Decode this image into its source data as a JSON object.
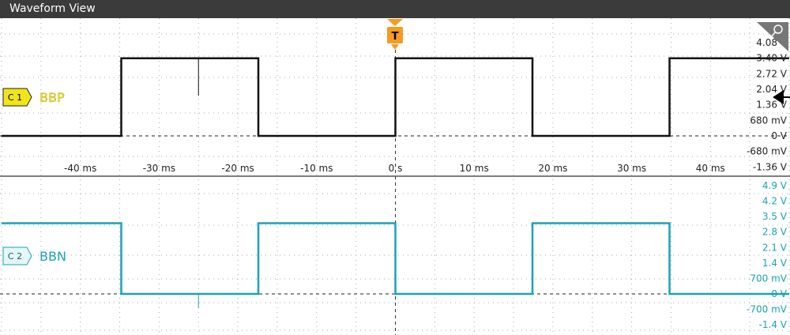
{
  "window": {
    "title": "Waveform View"
  },
  "trigger": {
    "badge": "T",
    "color": "#f59b22"
  },
  "channels": [
    {
      "id": "C1",
      "badge": "C 1",
      "name": "BBP",
      "color": "#f0e41b",
      "trace_color": "#111111"
    },
    {
      "id": "C2",
      "badge": "C 2",
      "name": "BBN",
      "color": "#e3f7f7",
      "trace_color": "#1aa3b3"
    }
  ],
  "chart_data": {
    "type": "line",
    "x_unit": "ms",
    "xlim": [
      -50,
      50
    ],
    "x_ticks": [
      -40,
      -30,
      -20,
      -10,
      0,
      10,
      20,
      30,
      40
    ],
    "x_tick_labels": [
      "-40 ms",
      "-30 ms",
      "-20 ms",
      "-10 ms",
      "0 s",
      "10 ms",
      "20 ms",
      "30 ms",
      "40 ms"
    ],
    "grid": true,
    "panes": [
      {
        "channel": "BBP",
        "ylim": [
          -1.36,
          4.08
        ],
        "y_tick_labels": [
          "4.08 V",
          "3.40 V",
          "2.72 V",
          "2.04 V",
          "1.36 V",
          "680 mV",
          "0 V",
          "-680 mV",
          "-1.36 V"
        ],
        "y_ticks": [
          4.08,
          3.4,
          2.72,
          2.04,
          1.36,
          0.68,
          0,
          -0.68,
          -1.36
        ],
        "x": [
          -50,
          -34.8,
          -34.8,
          -17.4,
          -17.4,
          0,
          0,
          17.4,
          17.4,
          34.8,
          34.8,
          50
        ],
        "y": [
          0,
          0,
          3.4,
          3.4,
          0,
          0,
          3.4,
          3.4,
          0,
          0,
          3.4,
          3.4
        ]
      },
      {
        "channel": "BBN",
        "ylim": [
          -1.4,
          4.9
        ],
        "y_tick_labels": [
          "4.9 V",
          "4.2 V",
          "3.5 V",
          "2.8 V",
          "2.1 V",
          "1.4 V",
          "700 mV",
          "0 V",
          "-700 mV",
          "-1.4 V"
        ],
        "y_ticks": [
          4.9,
          4.2,
          3.5,
          2.8,
          2.1,
          1.4,
          0.7,
          0,
          -0.7,
          -1.4
        ],
        "x": [
          -50,
          -34.8,
          -34.8,
          -17.4,
          -17.4,
          0,
          0,
          17.4,
          17.4,
          34.8,
          34.8,
          50
        ],
        "y": [
          3.2,
          3.2,
          0,
          0,
          3.2,
          3.2,
          0,
          0,
          3.2,
          3.2,
          0,
          0
        ]
      }
    ]
  }
}
